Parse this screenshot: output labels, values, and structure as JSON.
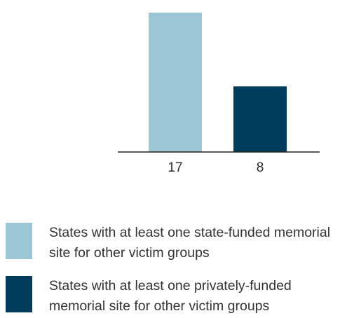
{
  "chart_data": {
    "type": "bar",
    "categories": [
      "17",
      "8"
    ],
    "series": [
      {
        "values": [
          17,
          8
        ]
      }
    ],
    "colors": [
      "#9cc5d5",
      "#003d5c"
    ],
    "ylim": [
      0,
      17
    ],
    "grid": false,
    "legend_position": "bottom",
    "legend": [
      {
        "label": "States with at least one state-funded memorial site for other victim groups",
        "color": "#9cc5d5"
      },
      {
        "label": "States with at least one privately-funded memorial site for other victim groups",
        "color": "#003d5c"
      }
    ]
  }
}
